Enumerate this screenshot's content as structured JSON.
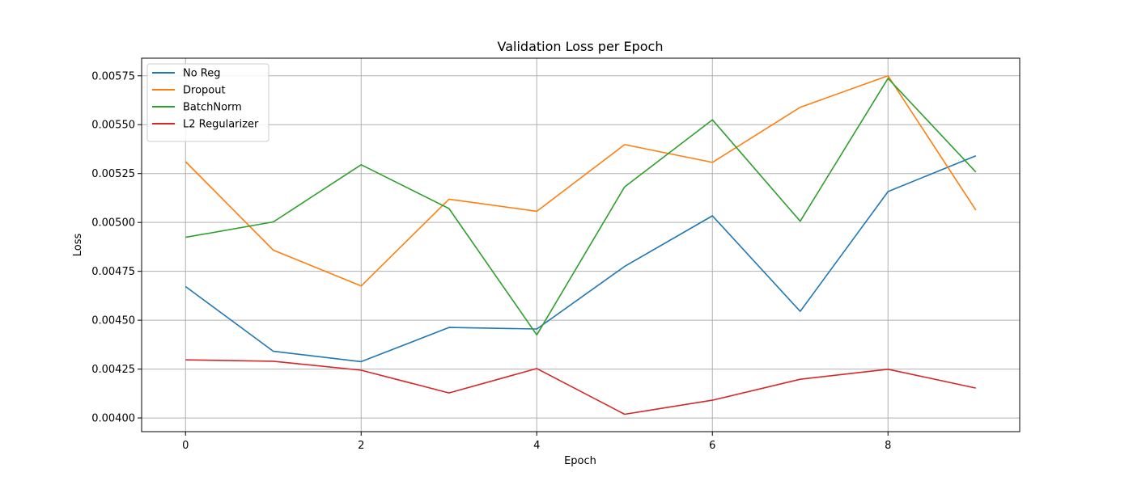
{
  "chart_data": {
    "type": "line",
    "title": "Validation Loss per Epoch",
    "xlabel": "Epoch",
    "ylabel": "Loss",
    "x": [
      0,
      1,
      2,
      3,
      4,
      5,
      6,
      7,
      8,
      9
    ],
    "xlim": [
      -0.5,
      9.5
    ],
    "ylim": [
      0.00393,
      0.00584
    ],
    "xticks": [
      0,
      2,
      4,
      6,
      8
    ],
    "xtick_labels": [
      "0",
      "2",
      "4",
      "6",
      "8"
    ],
    "yticks": [
      0.004,
      0.00425,
      0.0045,
      0.00475,
      0.005,
      0.00525,
      0.0055,
      0.00575
    ],
    "ytick_labels": [
      "0.00400",
      "0.00425",
      "0.00450",
      "0.00475",
      "0.00500",
      "0.00525",
      "0.00550",
      "0.00575"
    ],
    "grid": true,
    "legend_position": "top-left",
    "series": [
      {
        "name": "No Reg",
        "color": "#1f77b4",
        "values": [
          0.004672,
          0.004341,
          0.004288,
          0.004463,
          0.004455,
          0.004775,
          0.005034,
          0.004545,
          0.005158,
          0.005341
        ]
      },
      {
        "name": "Dropout",
        "color": "#ff7f0e",
        "values": [
          0.005311,
          0.004858,
          0.004675,
          0.005119,
          0.005057,
          0.005398,
          0.005307,
          0.005589,
          0.00575,
          0.005063
        ]
      },
      {
        "name": "BatchNorm",
        "color": "#2ca02c",
        "values": [
          0.004924,
          0.005003,
          0.005295,
          0.005071,
          0.004425,
          0.005182,
          0.005525,
          0.005006,
          0.005737,
          0.005258
        ]
      },
      {
        "name": "L2 Regularizer",
        "color": "#d62728",
        "values": [
          0.004297,
          0.00429,
          0.004244,
          0.004128,
          0.004253,
          0.004019,
          0.004091,
          0.004198,
          0.004249,
          0.004153
        ]
      }
    ]
  }
}
